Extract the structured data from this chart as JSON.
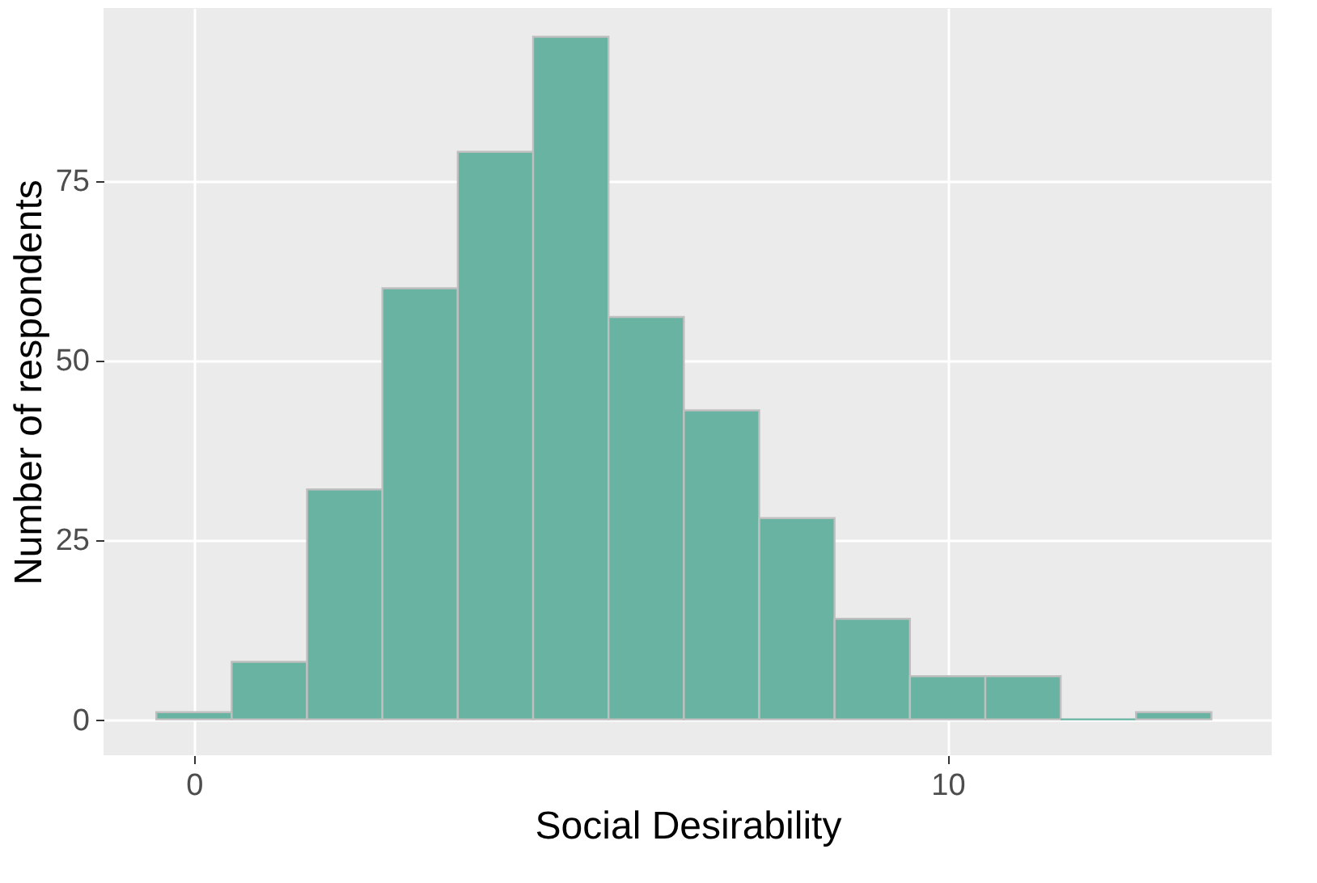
{
  "chart_data": {
    "type": "histogram",
    "xlabel": "Social Desirability",
    "ylabel": "Number of respondents",
    "bins": [
      -0.5,
      0.5,
      1.5,
      2.5,
      3.5,
      4.5,
      5.5,
      6.5,
      7.5,
      8.5,
      9.5,
      10.5,
      11.5,
      12.5,
      13.5
    ],
    "values": [
      1,
      8,
      32,
      60,
      79,
      95,
      56,
      43,
      28,
      14,
      6,
      6,
      0,
      1
    ],
    "color": "#69b3a2",
    "xlim": [
      -1.2,
      14.3
    ],
    "xticks": [
      0,
      10
    ],
    "ylim": [
      -5,
      99
    ],
    "yticks": [
      0,
      25,
      50,
      75
    ],
    "grid": true
  }
}
